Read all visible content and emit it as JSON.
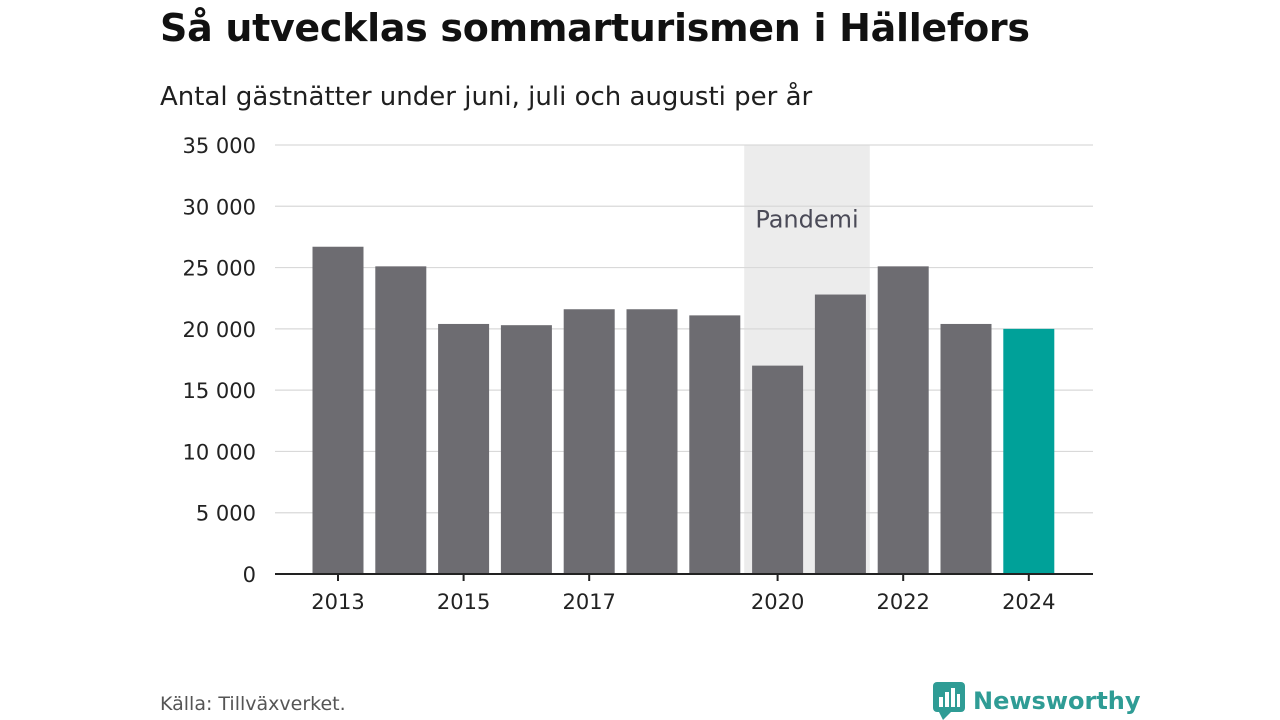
{
  "header": {
    "title": "Så utvecklas sommarturismen i Hällefors",
    "subtitle": "Antal gästnätter under juni, juli och augusti per år"
  },
  "footer": {
    "source": "Källa: Tillväxverket.",
    "brand": "Newsworthy"
  },
  "colors": {
    "bar_default": "#6d6c71",
    "bar_highlight": "#00a199",
    "gridline": "#d9d9d9",
    "axis": "#222222",
    "annotation_band": "#ececec",
    "brand": "#2f9c95"
  },
  "chart_data": {
    "type": "bar",
    "title": "Så utvecklas sommarturismen i Hällefors",
    "subtitle": "Antal gästnätter under juni, juli och augusti per år",
    "categories": [
      "2013",
      "2014",
      "2015",
      "2016",
      "2017",
      "2018",
      "2019",
      "2020",
      "2021",
      "2022",
      "2023",
      "2024"
    ],
    "values": [
      26700,
      25100,
      20400,
      20300,
      21600,
      21600,
      21100,
      17000,
      22800,
      25100,
      20400,
      20000
    ],
    "highlight": [
      "2024"
    ],
    "x_tick_labels": [
      "2013",
      "2015",
      "2017",
      "2020",
      "2022",
      "2024"
    ],
    "y_ticks": [
      0,
      5000,
      10000,
      15000,
      20000,
      25000,
      30000,
      35000
    ],
    "y_tick_labels": [
      "0",
      "5 000",
      "10 000",
      "15 000",
      "20 000",
      "25 000",
      "30 000",
      "35 000"
    ],
    "ylim": [
      0,
      35000
    ],
    "grid": true,
    "legend": "none",
    "annotations": [
      {
        "label": "Pandemi",
        "from": "2020",
        "to": "2021"
      }
    ]
  }
}
